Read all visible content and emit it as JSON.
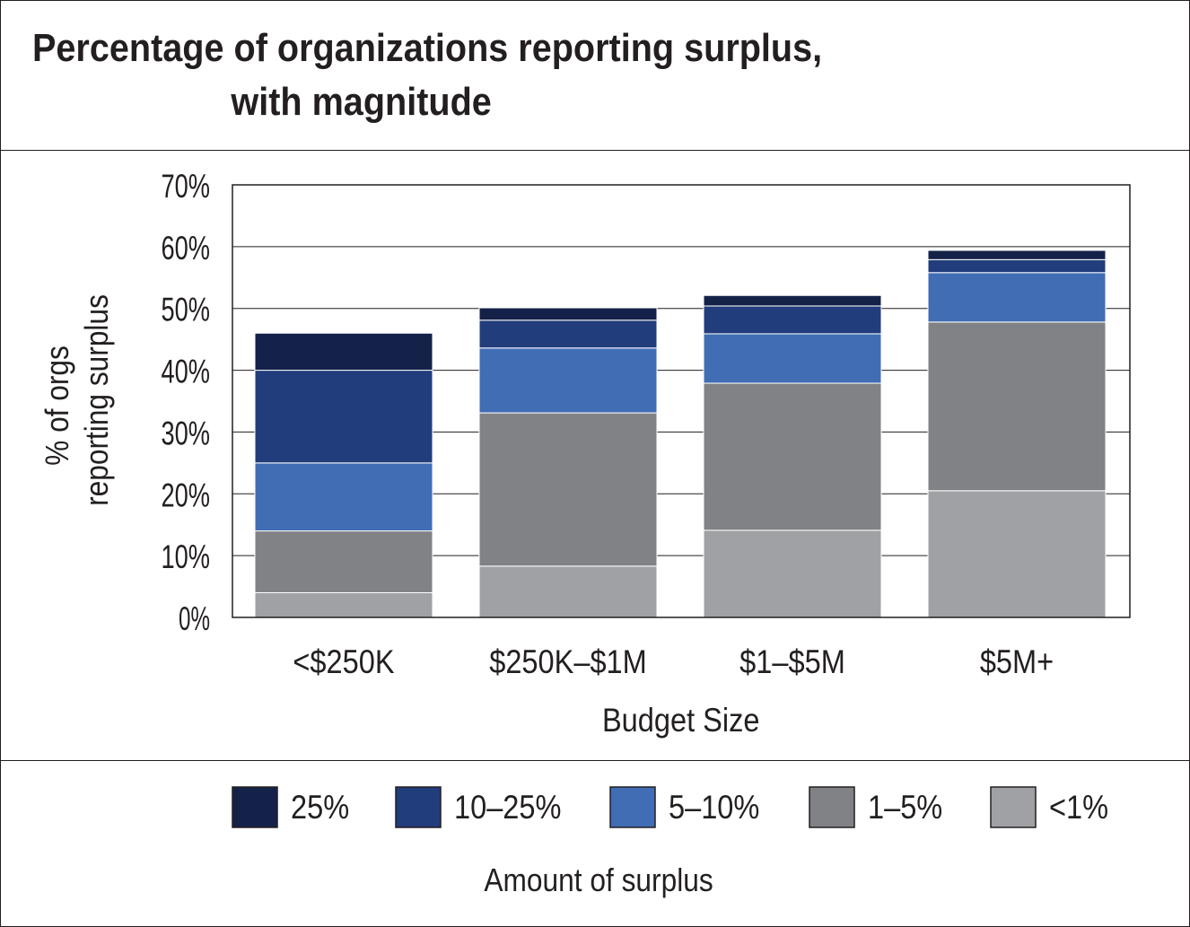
{
  "title_line1": "Percentage of organizations reporting surplus,",
  "title_line2": "with magnitude",
  "chart_data": {
    "type": "bar",
    "stacked": true,
    "title": "Percentage of organizations reporting surplus, with magnitude",
    "xlabel": "Budget Size",
    "ylabel_line1": "% of orgs",
    "ylabel_line2": "reporting surplus",
    "ylim": [
      0,
      70
    ],
    "yticks": [
      "0%",
      "10%",
      "20%",
      "30%",
      "40%",
      "50%",
      "60%",
      "70%"
    ],
    "grid": true,
    "categories": [
      "<$250K",
      "$250K–$1M",
      "$1–$5M",
      "$5M+"
    ],
    "legend_title": "Amount of surplus",
    "legend_placement": "bottom",
    "series": [
      {
        "name": "<1%",
        "color": "#a0a1a5",
        "values": [
          4,
          8.3,
          14.1,
          20.5
        ]
      },
      {
        "name": "1–5%",
        "color": "#818285",
        "values": [
          10,
          24.8,
          23.8,
          27.3
        ]
      },
      {
        "name": "5–10%",
        "color": "#416db4",
        "values": [
          11,
          10.5,
          8,
          8
        ]
      },
      {
        "name": "10–25%",
        "color": "#223d7c",
        "values": [
          15,
          4.5,
          4.5,
          2.1
        ]
      },
      {
        "name": "25%",
        "color": "#142249",
        "values": [
          6,
          2,
          1.7,
          1.5
        ]
      }
    ]
  }
}
